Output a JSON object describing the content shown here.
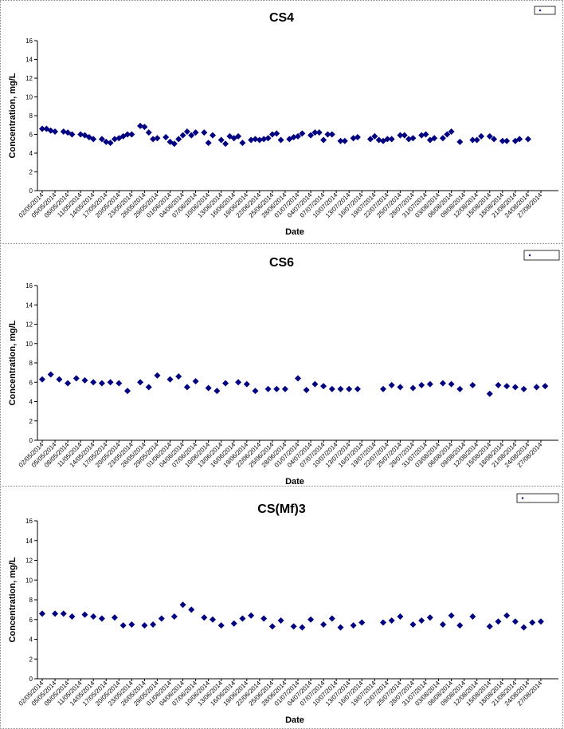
{
  "colors": {
    "marker": "#000080",
    "axis": "#000000",
    "border": "#888888"
  },
  "chart_data": [
    {
      "type": "scatter",
      "title": "CS4",
      "xlabel": "Date",
      "ylabel": "Concentration, mg/L",
      "ylim": [
        0,
        16
      ],
      "yticks": [
        0,
        2,
        4,
        6,
        8,
        10,
        12,
        14,
        16
      ],
      "x_tick_labels": [
        "02/05/2014",
        "05/05/2014",
        "08/05/2014",
        "11/05/2014",
        "14/05/2014",
        "17/05/2014",
        "20/05/2014",
        "23/05/2014",
        "26/05/2014",
        "29/05/2014",
        "01/06/2014",
        "04/06/2014",
        "07/06/2014",
        "10/06/2014",
        "13/06/2014",
        "16/06/2014",
        "19/06/2014",
        "22/06/2014",
        "25/06/2014",
        "28/06/2014",
        "01/07/2014",
        "04/07/2014",
        "07/07/2014",
        "10/07/2014",
        "13/07/2014",
        "16/07/2014",
        "19/07/2014",
        "22/07/2014",
        "25/07/2014",
        "28/07/2014",
        "31/07/2014",
        "03/08/2014",
        "06/08/2014",
        "09/08/2014",
        "12/08/2014",
        "15/08/2014",
        "18/08/2014",
        "21/08/2014",
        "24/08/2014",
        "27/08/2014"
      ],
      "legend": {
        "position": "top-right",
        "label": ""
      },
      "series": [
        {
          "x": [
            "2014-05-02",
            "2014-05-03",
            "2014-05-04",
            "2014-05-05",
            "2014-05-07",
            "2014-05-08",
            "2014-05-09",
            "2014-05-11",
            "2014-05-12",
            "2014-05-13",
            "2014-05-14",
            "2014-05-16",
            "2014-05-17",
            "2014-05-18",
            "2014-05-19",
            "2014-05-20",
            "2014-05-21",
            "2014-05-22",
            "2014-05-23",
            "2014-05-25",
            "2014-05-26",
            "2014-05-27",
            "2014-05-28",
            "2014-05-29",
            "2014-05-31",
            "2014-06-01",
            "2014-06-02",
            "2014-06-03",
            "2014-06-04",
            "2014-06-05",
            "2014-06-06",
            "2014-06-07",
            "2014-06-09",
            "2014-06-10",
            "2014-06-11",
            "2014-06-13",
            "2014-06-14",
            "2014-06-15",
            "2014-06-16",
            "2014-06-17",
            "2014-06-18",
            "2014-06-20",
            "2014-06-21",
            "2014-06-22",
            "2014-06-23",
            "2014-06-24",
            "2014-06-25",
            "2014-06-26",
            "2014-06-27",
            "2014-06-29",
            "2014-06-30",
            "2014-07-01",
            "2014-07-02",
            "2014-07-04",
            "2014-07-05",
            "2014-07-06",
            "2014-07-07",
            "2014-07-08",
            "2014-07-09",
            "2014-07-11",
            "2014-07-12",
            "2014-07-14",
            "2014-07-15",
            "2014-07-18",
            "2014-07-19",
            "2014-07-20",
            "2014-07-21",
            "2014-07-22",
            "2014-07-23",
            "2014-07-25",
            "2014-07-26",
            "2014-07-27",
            "2014-07-28",
            "2014-07-30",
            "2014-07-31",
            "2014-08-01",
            "2014-08-02",
            "2014-08-04",
            "2014-08-05",
            "2014-08-06",
            "2014-08-08",
            "2014-08-11",
            "2014-08-12",
            "2014-08-13",
            "2014-08-15",
            "2014-08-16",
            "2014-08-18",
            "2014-08-19",
            "2014-08-21",
            "2014-08-22",
            "2014-08-24"
          ],
          "y": [
            6.6,
            6.6,
            6.4,
            6.3,
            6.3,
            6.2,
            6.0,
            6.0,
            5.9,
            5.7,
            5.5,
            5.5,
            5.2,
            5.1,
            5.5,
            5.6,
            5.8,
            6.0,
            6.0,
            6.9,
            6.8,
            6.2,
            5.5,
            5.6,
            5.7,
            5.2,
            5.0,
            5.5,
            5.9,
            6.3,
            5.9,
            6.2,
            6.2,
            5.1,
            5.9,
            5.4,
            5.0,
            5.8,
            5.6,
            5.8,
            5.1,
            5.4,
            5.5,
            5.4,
            5.5,
            5.6,
            6.0,
            6.1,
            5.4,
            5.5,
            5.7,
            5.8,
            6.1,
            5.9,
            6.2,
            6.2,
            5.4,
            6.0,
            6.0,
            5.3,
            5.3,
            5.6,
            5.7,
            5.5,
            5.8,
            5.4,
            5.3,
            5.5,
            5.5,
            5.9,
            5.9,
            5.5,
            5.6,
            5.9,
            6.0,
            5.4,
            5.6,
            5.6,
            6.0,
            6.3,
            5.2,
            5.4,
            5.4,
            5.8,
            5.8,
            5.5,
            5.3,
            5.3,
            5.3,
            5.5,
            5.5
          ]
        }
      ]
    },
    {
      "type": "scatter",
      "title": "CS6",
      "xlabel": "Date",
      "ylabel": "Concentration, mg/L",
      "ylim": [
        0,
        16
      ],
      "yticks": [
        0,
        2,
        4,
        6,
        8,
        10,
        12,
        14,
        16
      ],
      "x_tick_labels": [
        "02/05/2014",
        "05/05/2014",
        "08/05/2014",
        "11/05/2014",
        "14/05/2014",
        "17/05/2014",
        "20/05/2014",
        "23/05/2014",
        "26/05/2014",
        "29/05/2014",
        "01/06/2014",
        "04/06/2014",
        "07/06/2014",
        "10/06/2014",
        "13/06/2014",
        "16/06/2014",
        "19/06/2014",
        "22/06/2014",
        "25/06/2014",
        "28/06/2014",
        "01/07/2014",
        "04/07/2014",
        "07/07/2014",
        "10/07/2014",
        "13/07/2014",
        "16/07/2014",
        "19/07/2014",
        "22/07/2014",
        "25/07/2014",
        "28/07/2014",
        "31/07/2014",
        "03/08/2014",
        "06/08/2014",
        "09/08/2014",
        "12/08/2014",
        "15/08/2014",
        "18/08/2014",
        "21/08/2014",
        "24/08/2014",
        "27/08/2014"
      ],
      "legend": {
        "position": "top-right",
        "label": ""
      },
      "series": [
        {
          "x": [
            "2014-05-02",
            "2014-05-04",
            "2014-05-06",
            "2014-05-08",
            "2014-05-10",
            "2014-05-12",
            "2014-05-14",
            "2014-05-16",
            "2014-05-18",
            "2014-05-20",
            "2014-05-22",
            "2014-05-25",
            "2014-05-27",
            "2014-05-29",
            "2014-06-01",
            "2014-06-03",
            "2014-06-05",
            "2014-06-07",
            "2014-06-10",
            "2014-06-12",
            "2014-06-14",
            "2014-06-17",
            "2014-06-19",
            "2014-06-21",
            "2014-06-24",
            "2014-06-26",
            "2014-06-28",
            "2014-07-01",
            "2014-07-03",
            "2014-07-05",
            "2014-07-07",
            "2014-07-09",
            "2014-07-11",
            "2014-07-13",
            "2014-07-15",
            "2014-07-21",
            "2014-07-23",
            "2014-07-25",
            "2014-07-28",
            "2014-07-30",
            "2014-08-01",
            "2014-08-04",
            "2014-08-06",
            "2014-08-08",
            "2014-08-11",
            "2014-08-15",
            "2014-08-17",
            "2014-08-19",
            "2014-08-21",
            "2014-08-23",
            "2014-08-26",
            "2014-08-28"
          ],
          "y": [
            6.3,
            6.8,
            6.3,
            5.9,
            6.4,
            6.2,
            6.0,
            5.9,
            6.0,
            5.9,
            5.1,
            6.0,
            5.5,
            6.7,
            6.3,
            6.6,
            5.5,
            6.1,
            5.4,
            5.1,
            5.9,
            6.0,
            5.8,
            5.1,
            5.3,
            5.3,
            5.3,
            6.4,
            5.2,
            5.8,
            5.6,
            5.3,
            5.3,
            5.3,
            5.3,
            5.3,
            5.7,
            5.5,
            5.4,
            5.7,
            5.8,
            5.9,
            5.8,
            5.3,
            5.7,
            4.8,
            5.7,
            5.6,
            5.5,
            5.3,
            5.5,
            5.6
          ]
        }
      ]
    },
    {
      "type": "scatter",
      "title": "CS(Mf)3",
      "xlabel": "Date",
      "ylabel": "Concentration, mg/L",
      "ylim": [
        0,
        16
      ],
      "yticks": [
        0,
        2,
        4,
        6,
        8,
        10,
        12,
        14,
        16
      ],
      "x_tick_labels": [
        "02/05/2014",
        "05/05/2014",
        "08/05/2014",
        "11/05/2014",
        "14/05/2014",
        "17/05/2014",
        "20/05/2014",
        "23/05/2014",
        "26/05/2014",
        "29/05/2014",
        "01/06/2014",
        "04/06/2014",
        "07/06/2014",
        "10/06/2014",
        "13/06/2014",
        "16/06/2014",
        "19/06/2014",
        "22/06/2014",
        "25/06/2014",
        "28/06/2014",
        "01/07/2014",
        "04/07/2014",
        "07/07/2014",
        "10/07/2014",
        "13/07/2014",
        "16/07/2014",
        "19/07/2014",
        "22/07/2014",
        "25/07/2014",
        "28/07/2014",
        "31/07/2014",
        "03/08/2014",
        "06/08/2014",
        "09/08/2014",
        "12/08/2014",
        "15/08/2014",
        "18/08/2014",
        "21/08/2014",
        "24/08/2014",
        "27/08/2014"
      ],
      "legend": {
        "position": "top-right",
        "label": ""
      },
      "series": [
        {
          "x": [
            "2014-05-02",
            "2014-05-05",
            "2014-05-07",
            "2014-05-09",
            "2014-05-12",
            "2014-05-14",
            "2014-05-16",
            "2014-05-19",
            "2014-05-21",
            "2014-05-23",
            "2014-05-26",
            "2014-05-28",
            "2014-05-30",
            "2014-06-02",
            "2014-06-04",
            "2014-06-06",
            "2014-06-09",
            "2014-06-11",
            "2014-06-13",
            "2014-06-16",
            "2014-06-18",
            "2014-06-20",
            "2014-06-23",
            "2014-06-25",
            "2014-06-27",
            "2014-06-30",
            "2014-07-02",
            "2014-07-04",
            "2014-07-07",
            "2014-07-09",
            "2014-07-11",
            "2014-07-14",
            "2014-07-16",
            "2014-07-21",
            "2014-07-23",
            "2014-07-25",
            "2014-07-28",
            "2014-07-30",
            "2014-08-01",
            "2014-08-04",
            "2014-08-06",
            "2014-08-08",
            "2014-08-11",
            "2014-08-15",
            "2014-08-17",
            "2014-08-19",
            "2014-08-21",
            "2014-08-23",
            "2014-08-25",
            "2014-08-27"
          ],
          "y": [
            6.6,
            6.6,
            6.6,
            6.3,
            6.5,
            6.3,
            6.1,
            6.2,
            5.4,
            5.5,
            5.4,
            5.5,
            6.1,
            6.3,
            7.5,
            7.0,
            6.2,
            6.0,
            5.4,
            5.6,
            6.1,
            6.4,
            6.1,
            5.3,
            5.9,
            5.3,
            5.2,
            6.0,
            5.5,
            6.1,
            5.2,
            5.4,
            5.7,
            5.7,
            5.9,
            6.3,
            5.5,
            5.9,
            6.2,
            5.5,
            6.4,
            5.4,
            6.3,
            5.3,
            5.8,
            6.4,
            5.8,
            5.2,
            5.7,
            5.8
          ]
        }
      ]
    }
  ]
}
